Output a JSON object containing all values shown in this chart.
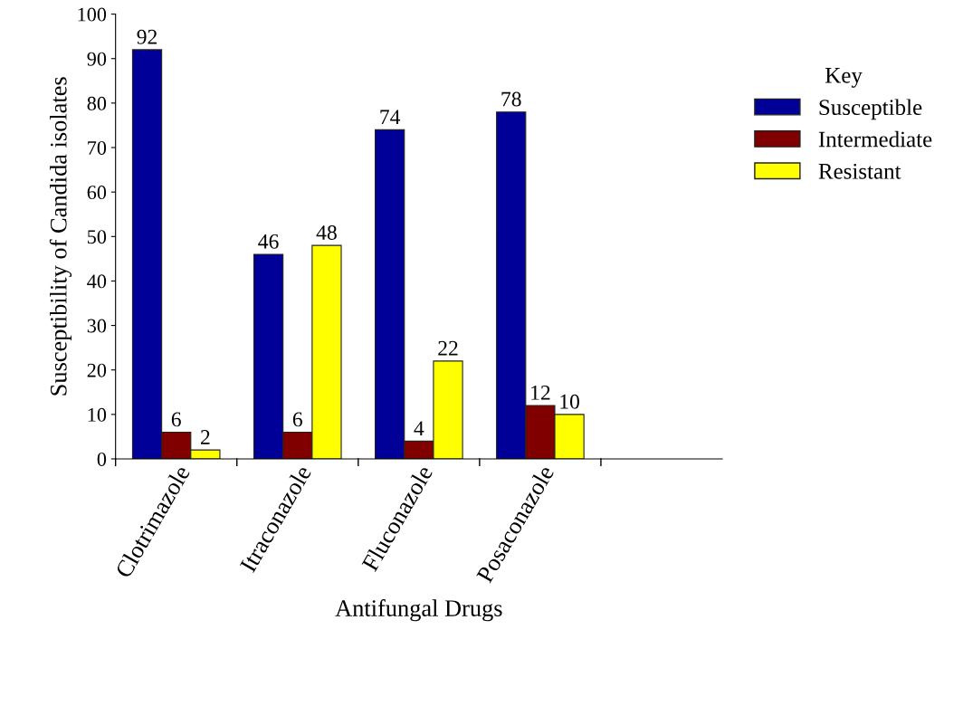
{
  "chart_data": {
    "type": "bar",
    "xlabel": "Antifungal Drugs",
    "ylabel": "Susceptibility of Candida isolates",
    "legend_title": "Key",
    "categories": [
      "Clotrimazole",
      "Itraconazole",
      "Fluconazole",
      "Posaconazole"
    ],
    "series": [
      {
        "name": "Susceptible",
        "color": "#000099",
        "values": [
          92,
          46,
          74,
          78
        ]
      },
      {
        "name": "Intermediate",
        "color": "#800000",
        "values": [
          6,
          6,
          4,
          12
        ]
      },
      {
        "name": "Resistant",
        "color": "#ffff00",
        "values": [
          2,
          48,
          22,
          10
        ]
      }
    ],
    "ylim": [
      0,
      100
    ],
    "yticks": [
      0,
      10,
      20,
      30,
      40,
      50,
      60,
      70,
      80,
      90,
      100
    ],
    "data_labels": true,
    "legend": "right",
    "grid": false
  }
}
